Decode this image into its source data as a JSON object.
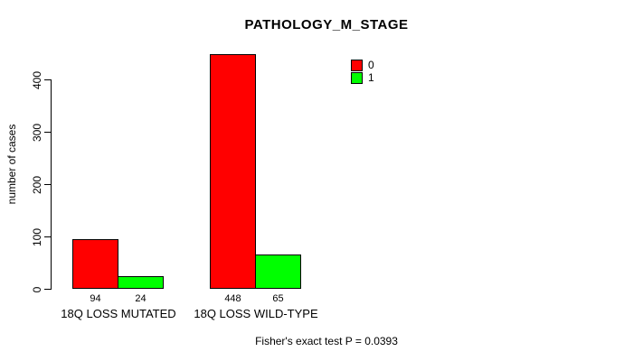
{
  "chart_data": {
    "type": "bar",
    "title": "PATHOLOGY_M_STAGE",
    "ylabel": "number of cases",
    "xlabel": "",
    "ylim": [
      0,
      460
    ],
    "yticks": [
      0,
      100,
      200,
      300,
      400
    ],
    "grid": false,
    "legend_position": "top-right-inside",
    "categories": [
      "18Q LOSS MUTATED",
      "18Q LOSS WILD-TYPE"
    ],
    "series": [
      {
        "name": "0",
        "color": "#ff0000",
        "values": [
          94,
          448
        ]
      },
      {
        "name": "1",
        "color": "#00ff00",
        "values": [
          24,
          65
        ]
      }
    ],
    "annotation": "Fisher's exact test P = 0.0393"
  }
}
